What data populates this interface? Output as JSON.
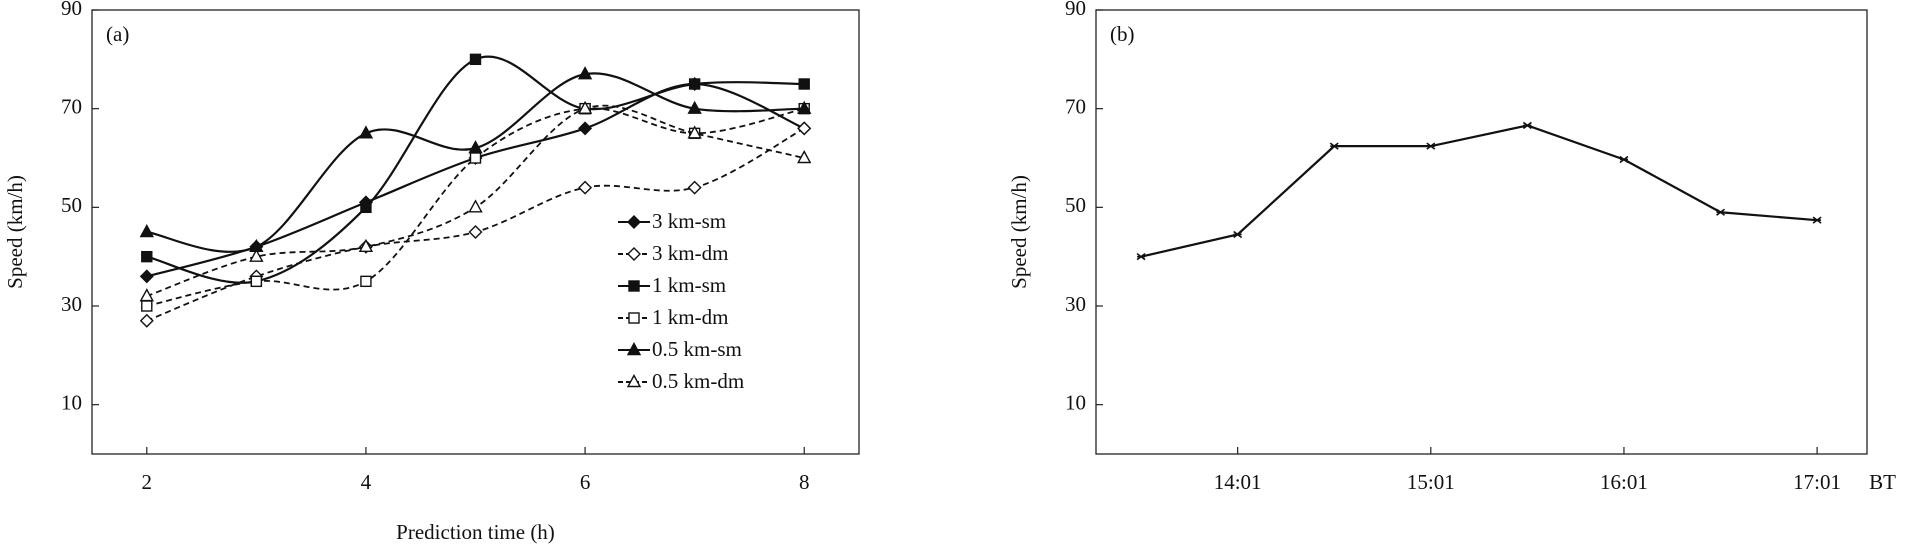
{
  "chart_data": [
    {
      "type": "line",
      "panel": "(a)",
      "smooth": true,
      "x_label": "Prediction time (h)",
      "y_label": "Speed (km/h)",
      "x": [
        2,
        3,
        4,
        5,
        6,
        7,
        8
      ],
      "xlim": [
        1.5,
        8.5
      ],
      "xticks": [
        2,
        4,
        6,
        8
      ],
      "ylim": [
        0,
        90
      ],
      "yticks": [
        10,
        30,
        50,
        70,
        90
      ],
      "series": [
        {
          "name": "3 km-sm",
          "color": "#111111",
          "marker": "diamond",
          "filled": true,
          "dashed": false,
          "values": [
            36,
            42,
            51,
            60,
            66,
            75,
            66
          ]
        },
        {
          "name": "3 km-dm",
          "color": "#111111",
          "marker": "diamond",
          "filled": false,
          "dashed": true,
          "values": [
            27,
            36,
            42,
            45,
            54,
            54,
            66
          ]
        },
        {
          "name": "1 km-sm",
          "color": "#111111",
          "marker": "square",
          "filled": true,
          "dashed": false,
          "values": [
            40,
            35,
            50,
            80,
            70,
            75,
            75
          ]
        },
        {
          "name": "1 km-dm",
          "color": "#111111",
          "marker": "square",
          "filled": false,
          "dashed": true,
          "values": [
            30,
            35,
            35,
            60,
            70,
            65,
            70
          ]
        },
        {
          "name": "0.5 km-sm",
          "color": "#111111",
          "marker": "triangle",
          "filled": true,
          "dashed": false,
          "values": [
            45,
            42,
            65,
            62,
            77,
            70,
            70
          ]
        },
        {
          "name": "0.5 km-dm",
          "color": "#111111",
          "marker": "triangle",
          "filled": false,
          "dashed": true,
          "values": [
            32,
            40,
            42,
            50,
            70,
            65,
            60
          ]
        }
      ]
    },
    {
      "type": "line",
      "panel": "(b)",
      "smooth": false,
      "x_label": "BT",
      "y_label": "Speed (km/h)",
      "x": [
        811,
        841,
        871,
        901,
        931,
        961,
        991,
        1021
      ],
      "xlim": [
        797,
        1036.5
      ],
      "xticks": [
        {
          "value": 841,
          "label": "14:01"
        },
        {
          "value": 901,
          "label": "15:01"
        },
        {
          "value": 961,
          "label": "16:01"
        },
        {
          "value": 1021,
          "label": "17:01"
        }
      ],
      "ylim": [
        0,
        90
      ],
      "yticks": [
        10,
        30,
        50,
        70,
        90
      ],
      "series": [
        {
          "color": "#111111",
          "marker": "cross",
          "filled": true,
          "dashed": false,
          "values": [
            40,
            44.5,
            62.4,
            62.4,
            66.6,
            59.7,
            49,
            47.4
          ]
        }
      ]
    }
  ]
}
